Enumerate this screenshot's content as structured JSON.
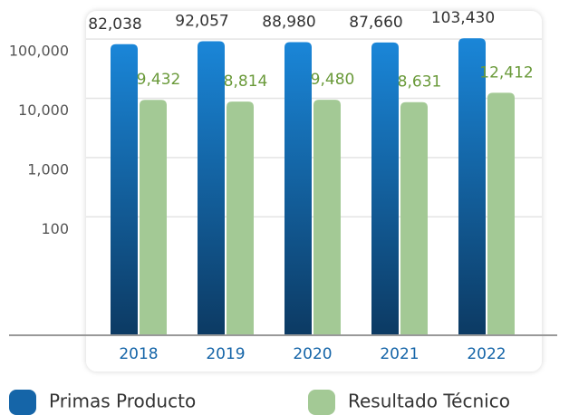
{
  "chart_data": {
    "type": "bar",
    "log_scale": true,
    "grid": true,
    "legend_position": "bottom",
    "categories": [
      "2018",
      "2019",
      "2020",
      "2021",
      "2022"
    ],
    "series": [
      {
        "name": "Primas Producto",
        "color": "#1565a8",
        "values": [
          82038,
          92057,
          88980,
          87660,
          103430
        ],
        "value_labels": [
          "82,038",
          "92,057",
          "88,980",
          "87,660",
          "103,430"
        ]
      },
      {
        "name": "Resultado Técnico",
        "color": "#a3c995",
        "values": [
          9432,
          8814,
          9480,
          8631,
          12412
        ],
        "value_labels": [
          "9,432",
          "8,814",
          "9,480",
          "8,631",
          "12,412"
        ]
      }
    ],
    "ylim": [
      1,
      300000
    ],
    "yticks": [
      100,
      {
        "value": 1000,
        "label": "1,000"
      },
      {
        "value": 10000,
        "label": "10,000"
      },
      {
        "value": 100000,
        "label": "100,000"
      }
    ]
  }
}
